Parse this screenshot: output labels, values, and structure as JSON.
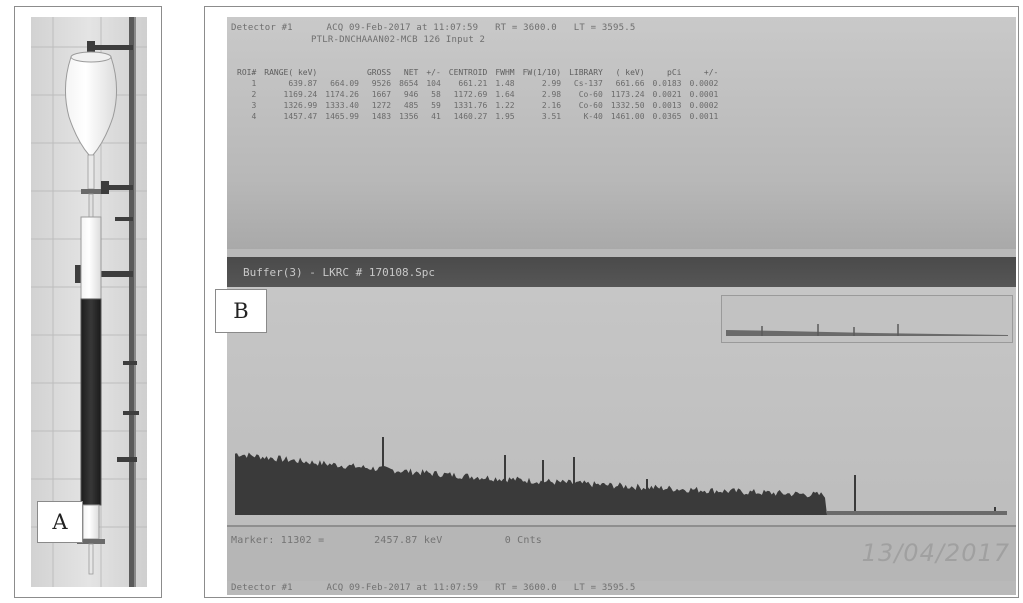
{
  "panels": {
    "a": {
      "label": "A"
    },
    "b": {
      "label": "B"
    }
  },
  "screen": {
    "detector_line": "Detector #1      ACQ 09-Feb-2017 at 11:07:59   RT = 3600.0   LT = 3595.5",
    "file_line": "PTLR-DNCHAAAN02-MCB 126 Input 2",
    "table": {
      "headers": [
        "ROI#",
        "RANGE( keV)",
        "",
        "GROSS",
        "NET",
        "+/-",
        "CENTROID",
        "FWHM",
        "FW(1/10)",
        "LIBRARY",
        "( keV)",
        "pCi",
        "+/-"
      ],
      "rows": [
        [
          "1",
          "639.87",
          "664.09",
          "9526",
          "8654",
          "104",
          "661.21",
          "1.48",
          "2.99",
          "Cs-137",
          "661.66",
          "0.0183",
          "0.0002"
        ],
        [
          "2",
          "1169.24",
          "1174.26",
          "1667",
          "946",
          "58",
          "1172.69",
          "1.64",
          "2.98",
          "Co-60",
          "1173.24",
          "0.0021",
          "0.0001"
        ],
        [
          "3",
          "1326.99",
          "1333.40",
          "1272",
          "485",
          "59",
          "1331.76",
          "1.22",
          "2.16",
          "Co-60",
          "1332.50",
          "0.0013",
          "0.0002"
        ],
        [
          "4",
          "1457.47",
          "1465.99",
          "1483",
          "1356",
          "41",
          "1460.27",
          "1.95",
          "3.51",
          "K-40",
          "1461.00",
          "0.0365",
          "0.0011"
        ]
      ]
    },
    "buffer_title": "Buffer(3) - LKRC # 170108.Spc",
    "cursor_line": "Marker: 11302 =        2457.87 keV          0 Cnts",
    "date_stamp": "13/04/2017",
    "bottom_line": "Detector #1      ACQ 09-Feb-2017 at 11:07:59   RT = 3600.0   LT = 3595.5"
  },
  "colors": {
    "screen_bg": "#b9b9b9",
    "title_bar": "#4a4a4a",
    "spectrum_fill": "#3a3a3a",
    "column_liquid": "#2a2a2a"
  }
}
